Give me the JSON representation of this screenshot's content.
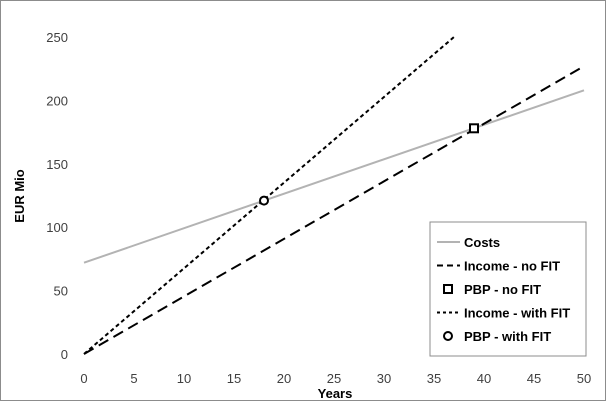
{
  "chart_data": {
    "type": "line",
    "title": "",
    "xlabel": "Years",
    "ylabel": "EUR Mio",
    "xlim": [
      0,
      50
    ],
    "ylim": [
      0,
      250
    ],
    "x_ticks": [
      "0",
      "5",
      "10",
      "15",
      "20",
      "25",
      "30",
      "35",
      "40",
      "45",
      "50"
    ],
    "y_ticks": [
      "0",
      "50",
      "100",
      "150",
      "200",
      "250"
    ],
    "grid": false,
    "legend_position": "bottom-right",
    "series": [
      {
        "name": "Costs",
        "style": "solid",
        "color": "#b3b3b3",
        "x": [
          0,
          50
        ],
        "y": [
          72,
          208
        ]
      },
      {
        "name": "Income - no FIT",
        "style": "dashed",
        "color": "#000000",
        "x": [
          0,
          50
        ],
        "y": [
          0,
          227
        ]
      },
      {
        "name": "Income - with FIT",
        "style": "dotted",
        "color": "#000000",
        "x": [
          0,
          37
        ],
        "y": [
          0,
          250
        ]
      }
    ],
    "markers": [
      {
        "name": "PBP - no FIT",
        "shape": "square",
        "x": 39,
        "y": 178
      },
      {
        "name": "PBP - with FIT",
        "shape": "circle",
        "x": 18,
        "y": 121
      }
    ],
    "legend": [
      "Costs",
      "Income - no FIT",
      "PBP - no FIT",
      "Income - with FIT",
      "PBP - with FIT"
    ]
  }
}
